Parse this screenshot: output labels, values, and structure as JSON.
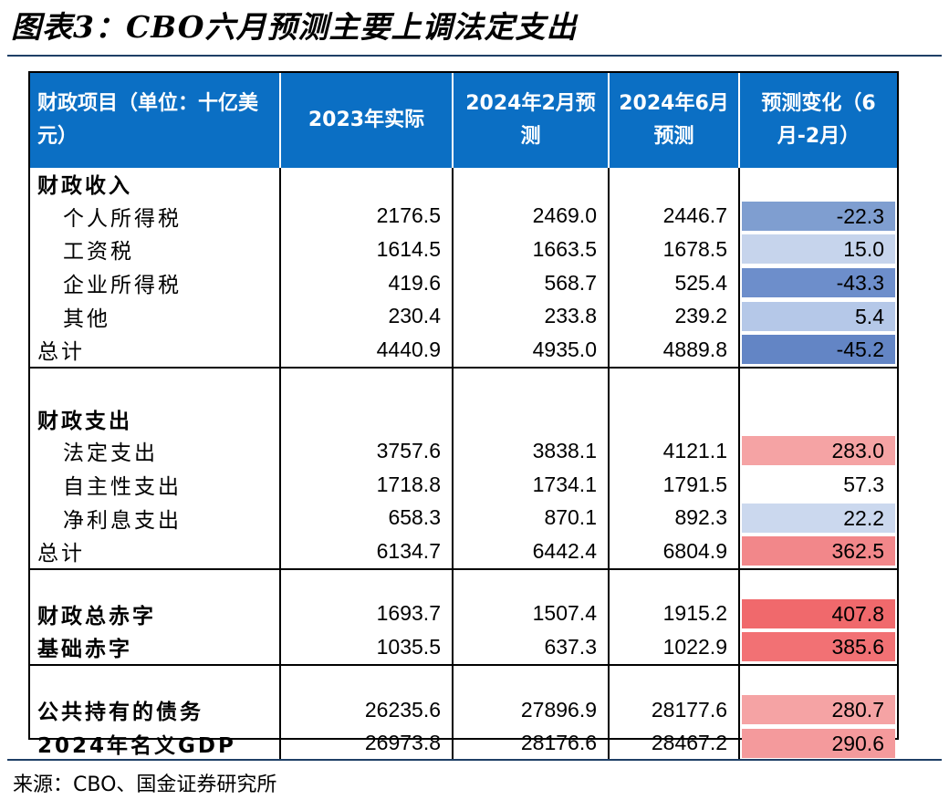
{
  "title": "图表3：CBO六月预测主要上调法定支出",
  "source": "来源：CBO、国金证券研究所",
  "table": {
    "headers": [
      "财政项目（单位：十亿美元）",
      "2023年实际",
      "2024年2月预测",
      "2024年6月预测",
      "预测变化（6月-2月）"
    ],
    "sections": [
      {
        "title": "财政收入",
        "rows": [
          {
            "label": "个人所得税",
            "actual_2023": "2176.5",
            "feb_2024": "2469.0",
            "jun_2024": "2446.7",
            "change": "-22.3",
            "color": "#7f9ed0"
          },
          {
            "label": "工资税",
            "actual_2023": "1614.5",
            "feb_2024": "1663.5",
            "jun_2024": "1678.5",
            "change": "15.0",
            "color": "#c6d4ec"
          },
          {
            "label": "企业所得税",
            "actual_2023": "419.6",
            "feb_2024": "568.7",
            "jun_2024": "525.4",
            "change": "-43.3",
            "color": "#6d8ecb"
          },
          {
            "label": "其他",
            "actual_2023": "230.4",
            "feb_2024": "233.8",
            "jun_2024": "239.2",
            "change": "5.4",
            "color": "#b5c8e8"
          }
        ],
        "total": {
          "label": "总计",
          "actual_2023": "4440.9",
          "feb_2024": "4935.0",
          "jun_2024": "4889.8",
          "change": "-45.2",
          "color": "#6385c5"
        }
      },
      {
        "title": "财政支出",
        "rows": [
          {
            "label": "法定支出",
            "actual_2023": "3757.6",
            "feb_2024": "3838.1",
            "jun_2024": "4121.1",
            "change": "283.0",
            "color": "#f5a3a4"
          },
          {
            "label": "自主性支出",
            "actual_2023": "1718.8",
            "feb_2024": "1734.1",
            "jun_2024": "1791.5",
            "change": "57.3",
            "color": "#ffffff"
          },
          {
            "label": "净利息支出",
            "actual_2023": "658.3",
            "feb_2024": "870.1",
            "jun_2024": "892.3",
            "change": "22.2",
            "color": "#cbd8ee"
          }
        ],
        "total": {
          "label": "总计",
          "actual_2023": "6134.7",
          "feb_2024": "6442.4",
          "jun_2024": "6804.9",
          "change": "362.5",
          "color": "#f2878a"
        }
      }
    ],
    "deficits": [
      {
        "label": "财政总赤字",
        "actual_2023": "1693.7",
        "feb_2024": "1507.4",
        "jun_2024": "1915.2",
        "change": "407.8",
        "color": "#f0696c"
      },
      {
        "label": "基础赤字",
        "actual_2023": "1035.5",
        "feb_2024": "637.3",
        "jun_2024": "1022.9",
        "change": "385.6",
        "color": "#f27174"
      }
    ],
    "debt": [
      {
        "label": "公共持有的债务",
        "actual_2023": "26235.6",
        "feb_2024": "27896.9",
        "jun_2024": "28177.6",
        "change": "280.7",
        "color": "#f5a3a4"
      },
      {
        "label": "2024年名义GDP",
        "actual_2023": "26973.8",
        "feb_2024": "28176.6",
        "jun_2024": "28467.2",
        "change": "290.6",
        "color": "#f49a9c"
      }
    ]
  }
}
